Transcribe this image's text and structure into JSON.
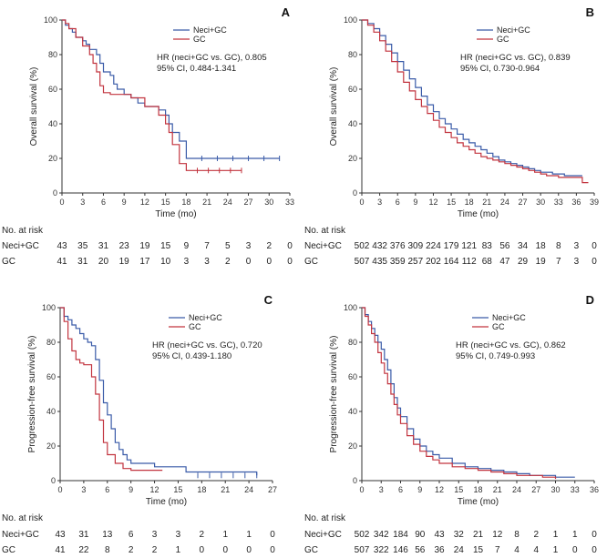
{
  "colors": {
    "neci": "#3a5ba8",
    "gc": "#c2343f",
    "axis": "#333333"
  },
  "chart_data": [
    {
      "type": "line",
      "panel": "A",
      "ylabel": "Overall survival (%)",
      "xlabel": "Time (mo)",
      "xlim": [
        0,
        33
      ],
      "ylim": [
        0,
        100
      ],
      "xticks": [
        "0",
        "3",
        "6",
        "9",
        "12",
        "15",
        "18",
        "21",
        "24",
        "27",
        "30",
        "33"
      ],
      "yticks": [
        "0",
        "20",
        "40",
        "60",
        "80",
        "100"
      ],
      "legend": [
        "Neci+GC",
        "GC"
      ],
      "hr": "HR (neci+GC vs. GC), 0.805",
      "ci": "95% CI, 0.484-1.341",
      "series": [
        {
          "name": "Neci+GC",
          "x": [
            0,
            0.5,
            1,
            1.5,
            2,
            3,
            3.5,
            4,
            5,
            5.5,
            6,
            7,
            7.5,
            8,
            9,
            10,
            11,
            12,
            13,
            14,
            15,
            15.5,
            16,
            17,
            18,
            31.5
          ],
          "y": [
            100,
            97,
            95,
            93,
            90,
            88,
            86,
            83,
            80,
            75,
            70,
            68,
            63,
            60,
            57,
            55,
            52,
            50,
            50,
            48,
            45,
            40,
            35,
            30,
            20,
            20
          ]
        },
        {
          "name": "GC",
          "x": [
            0,
            0.5,
            1,
            2,
            3,
            4,
            4.5,
            5,
            5.5,
            6,
            7,
            8,
            10,
            12,
            13,
            14,
            15,
            15.5,
            16,
            17,
            18,
            26
          ],
          "y": [
            100,
            98,
            95,
            90,
            85,
            80,
            75,
            70,
            62,
            58,
            57,
            57,
            55,
            50,
            50,
            45,
            40,
            35,
            28,
            17,
            13,
            13
          ]
        }
      ],
      "risk": {
        "header": "No. at risk",
        "rows": [
          {
            "label": "Neci+GC",
            "values": [
              "43",
              "35",
              "31",
              "23",
              "19",
              "15",
              "9",
              "7",
              "5",
              "3",
              "2",
              "0"
            ]
          },
          {
            "label": "GC",
            "values": [
              "41",
              "31",
              "20",
              "19",
              "17",
              "10",
              "3",
              "3",
              "2",
              "0",
              "0",
              "0"
            ]
          }
        ]
      }
    },
    {
      "type": "line",
      "panel": "B",
      "ylabel": "Overall survival (%)",
      "xlabel": "Time (mo)",
      "xlim": [
        0,
        39
      ],
      "ylim": [
        0,
        100
      ],
      "xticks": [
        "0",
        "3",
        "6",
        "9",
        "12",
        "15",
        "18",
        "21",
        "24",
        "27",
        "30",
        "33",
        "36",
        "39"
      ],
      "yticks": [
        "0",
        "20",
        "40",
        "60",
        "80",
        "100"
      ],
      "legend": [
        "Neci+GC",
        "GC"
      ],
      "hr": "HR (neci+GC vs. GC), 0.839",
      "ci": "95% CI, 0.730-0.964",
      "series": [
        {
          "name": "Neci+GC",
          "x": [
            0,
            1,
            2,
            3,
            4,
            5,
            6,
            7,
            8,
            9,
            10,
            11,
            12,
            13,
            14,
            15,
            16,
            17,
            18,
            19,
            20,
            21,
            22,
            23,
            24,
            25,
            26,
            27,
            28,
            29,
            30,
            31,
            32,
            33,
            34,
            35,
            36,
            37
          ],
          "y": [
            100,
            98,
            95,
            91,
            86,
            81,
            76,
            71,
            66,
            61,
            56,
            51,
            47,
            43,
            40,
            37,
            34,
            31,
            29,
            27,
            25,
            23,
            21,
            19,
            18,
            17,
            16,
            15,
            14,
            13,
            12,
            12,
            11,
            11,
            10,
            10,
            10,
            10
          ]
        },
        {
          "name": "GC",
          "x": [
            0,
            1,
            2,
            3,
            4,
            5,
            6,
            7,
            8,
            9,
            10,
            11,
            12,
            13,
            14,
            15,
            16,
            17,
            18,
            19,
            20,
            21,
            22,
            23,
            24,
            25,
            26,
            27,
            28,
            29,
            30,
            31,
            32,
            33,
            34,
            35,
            36,
            37,
            38
          ],
          "y": [
            100,
            97,
            93,
            88,
            82,
            76,
            70,
            64,
            59,
            54,
            50,
            46,
            42,
            38,
            35,
            32,
            29,
            27,
            25,
            23,
            21,
            20,
            19,
            18,
            17,
            16,
            15,
            14,
            13,
            12,
            11,
            10,
            10,
            9,
            9,
            9,
            9,
            6,
            6
          ]
        }
      ],
      "risk": {
        "header": "No. at risk",
        "rows": [
          {
            "label": "Neci+GC",
            "values": [
              "502",
              "432",
              "376",
              "309",
              "224",
              "179",
              "121",
              "83",
              "56",
              "34",
              "18",
              "8",
              "3",
              "0"
            ]
          },
          {
            "label": "GC",
            "values": [
              "507",
              "435",
              "359",
              "257",
              "202",
              "164",
              "112",
              "68",
              "47",
              "29",
              "19",
              "7",
              "3",
              "0"
            ]
          }
        ]
      }
    },
    {
      "type": "line",
      "panel": "C",
      "ylabel": "Progression-free survival (%)",
      "xlabel": "Time (mo)",
      "xlim": [
        0,
        27
      ],
      "ylim": [
        0,
        100
      ],
      "xticks": [
        "0",
        "3",
        "6",
        "9",
        "12",
        "15",
        "18",
        "21",
        "24",
        "27"
      ],
      "yticks": [
        "0",
        "20",
        "40",
        "60",
        "80",
        "100"
      ],
      "legend": [
        "Neci+GC",
        "GC"
      ],
      "hr": "HR (neci+GC vs. GC), 0.720",
      "ci": "95% CI, 0.439-1.180",
      "series": [
        {
          "name": "Neci+GC",
          "x": [
            0,
            0.5,
            1,
            1.5,
            2,
            2.5,
            3,
            3.5,
            4,
            4.5,
            5,
            5.5,
            6,
            6.5,
            7,
            7.5,
            8,
            8.5,
            9,
            12,
            16,
            25
          ],
          "y": [
            100,
            95,
            93,
            90,
            88,
            85,
            82,
            80,
            78,
            70,
            58,
            45,
            38,
            30,
            22,
            18,
            15,
            12,
            10,
            8,
            5,
            3
          ]
        },
        {
          "name": "GC",
          "x": [
            0,
            0.5,
            1,
            1.5,
            2,
            2.5,
            3,
            3.5,
            4,
            4.5,
            5,
            5.5,
            6,
            7,
            8,
            9,
            10,
            11,
            12,
            13
          ],
          "y": [
            100,
            92,
            82,
            75,
            70,
            68,
            67,
            67,
            60,
            50,
            35,
            22,
            15,
            10,
            7,
            6,
            6,
            6,
            6,
            6
          ]
        }
      ],
      "risk": {
        "header": "No. at risk",
        "rows": [
          {
            "label": "Neci+GC",
            "values": [
              "43",
              "31",
              "13",
              "6",
              "3",
              "3",
              "2",
              "1",
              "1",
              "0"
            ]
          },
          {
            "label": "GC",
            "values": [
              "41",
              "22",
              "8",
              "2",
              "2",
              "1",
              "0",
              "0",
              "0",
              "0"
            ]
          }
        ]
      }
    },
    {
      "type": "line",
      "panel": "D",
      "ylabel": "Progression-free survival (%)",
      "xlabel": "Time (mo)",
      "xlim": [
        0,
        36
      ],
      "ylim": [
        0,
        100
      ],
      "xticks": [
        "0",
        "3",
        "6",
        "9",
        "12",
        "15",
        "18",
        "21",
        "24",
        "27",
        "30",
        "33",
        "36"
      ],
      "yticks": [
        "0",
        "20",
        "40",
        "60",
        "80",
        "100"
      ],
      "legend": [
        "Neci+GC",
        "GC"
      ],
      "hr": "HR (neci+GC vs. GC), 0.862",
      "ci": "95% CI, 0.749-0.993",
      "series": [
        {
          "name": "Neci+GC",
          "x": [
            0,
            0.5,
            1,
            1.5,
            2,
            2.5,
            3,
            3.5,
            4,
            4.5,
            5,
            5.5,
            6,
            7,
            8,
            9,
            10,
            11,
            12,
            14,
            16,
            18,
            20,
            22,
            24,
            26,
            28,
            30,
            32,
            33
          ],
          "y": [
            100,
            96,
            92,
            88,
            84,
            80,
            76,
            70,
            64,
            56,
            48,
            42,
            37,
            30,
            24,
            20,
            17,
            15,
            13,
            10,
            8,
            7,
            6,
            5,
            4,
            3,
            3,
            2,
            2,
            2
          ]
        },
        {
          "name": "GC",
          "x": [
            0,
            0.5,
            1,
            1.5,
            2,
            2.5,
            3,
            3.5,
            4,
            4.5,
            5,
            5.5,
            6,
            7,
            8,
            9,
            10,
            11,
            12,
            14,
            16,
            18,
            20,
            22,
            24,
            26,
            28,
            30
          ],
          "y": [
            100,
            95,
            90,
            85,
            80,
            74,
            68,
            62,
            56,
            50,
            44,
            38,
            33,
            26,
            21,
            17,
            14,
            12,
            10,
            8,
            7,
            6,
            5,
            4,
            3,
            3,
            2,
            1
          ]
        }
      ],
      "risk": {
        "header": "No. at risk",
        "rows": [
          {
            "label": "Neci+GC",
            "values": [
              "502",
              "342",
              "184",
              "90",
              "43",
              "32",
              "21",
              "12",
              "8",
              "2",
              "1",
              "1",
              "0"
            ]
          },
          {
            "label": "GC",
            "values": [
              "507",
              "322",
              "146",
              "56",
              "36",
              "24",
              "15",
              "7",
              "4",
              "4",
              "1",
              "0",
              "0"
            ]
          }
        ]
      }
    }
  ]
}
